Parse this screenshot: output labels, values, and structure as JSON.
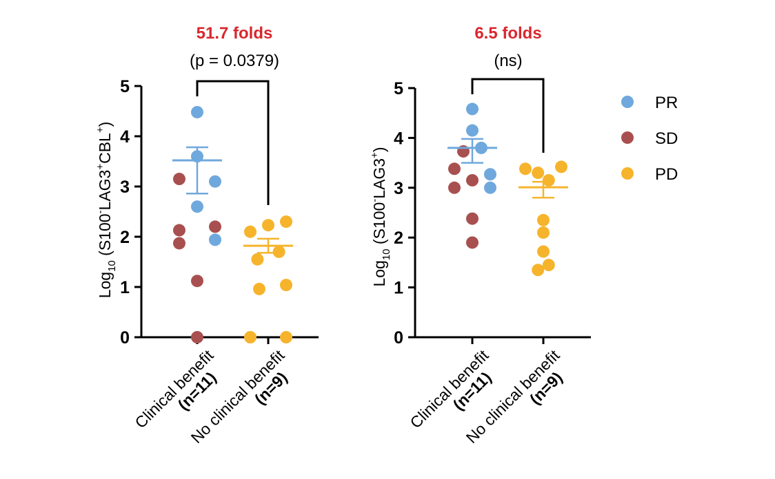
{
  "colors": {
    "PR": "#6fa8dc",
    "SD": "#a8504f",
    "PD": "#f6b42c",
    "fold": "#d9272e"
  },
  "legend": [
    {
      "key": "PR",
      "label": "PR"
    },
    {
      "key": "SD",
      "label": "SD"
    },
    {
      "key": "PD",
      "label": "PD"
    }
  ],
  "chart_data": [
    {
      "type": "scatter",
      "ylabel": {
        "base": "Log",
        "sub": "10",
        "pre": " (S100",
        "sup1": "-",
        "mid": "LAG3",
        "sup2": "+",
        "mid2": "CBL",
        "sup3": "+",
        "post": ")"
      },
      "ylim": [
        0,
        5
      ],
      "yticks": [
        "0",
        "1",
        "2",
        "3",
        "4",
        "5"
      ],
      "categories": [
        {
          "line1": "Clinical benefit",
          "line2": "(n=11)"
        },
        {
          "line1": "No clinical benefit",
          "line2": "(n=9)"
        }
      ],
      "fold": "51.7 folds",
      "pvalue": "(p = 0.0379)",
      "points": [
        {
          "group": 0,
          "type": "PR",
          "y": 4.48,
          "dx": 0
        },
        {
          "group": 0,
          "type": "PR",
          "y": 3.6,
          "dx": 0
        },
        {
          "group": 0,
          "type": "PR",
          "y": 3.1,
          "dx": 1
        },
        {
          "group": 0,
          "type": "PR",
          "y": 2.6,
          "dx": 0
        },
        {
          "group": 0,
          "type": "PR",
          "y": 1.94,
          "dx": 1
        },
        {
          "group": 0,
          "type": "SD",
          "y": 3.15,
          "dx": -1
        },
        {
          "group": 0,
          "type": "SD",
          "y": 2.13,
          "dx": -1
        },
        {
          "group": 0,
          "type": "SD",
          "y": 2.2,
          "dx": 1
        },
        {
          "group": 0,
          "type": "SD",
          "y": 1.87,
          "dx": -1
        },
        {
          "group": 0,
          "type": "SD",
          "y": 1.12,
          "dx": 0
        },
        {
          "group": 0,
          "type": "SD",
          "y": 0.0,
          "dx": 0
        },
        {
          "group": 1,
          "type": "PD",
          "y": 2.3,
          "dx": 1
        },
        {
          "group": 1,
          "type": "PD",
          "y": 2.23,
          "dx": 0
        },
        {
          "group": 1,
          "type": "PD",
          "y": 2.1,
          "dx": -1
        },
        {
          "group": 1,
          "type": "PD",
          "y": 1.7,
          "dx": 0.6
        },
        {
          "group": 1,
          "type": "PD",
          "y": 1.55,
          "dx": -0.6
        },
        {
          "group": 1,
          "type": "PD",
          "y": 1.04,
          "dx": 1
        },
        {
          "group": 1,
          "type": "PD",
          "y": 0.96,
          "dx": -0.5
        },
        {
          "group": 1,
          "type": "PD",
          "y": 0.0,
          "dx": -1
        },
        {
          "group": 1,
          "type": "PD",
          "y": 0.0,
          "dx": 1
        }
      ],
      "summary": [
        {
          "type": "PR",
          "mean": 3.52,
          "low": 2.86,
          "high": 3.78
        },
        {
          "type": "PD",
          "mean": 1.82,
          "low": 1.68,
          "high": 1.96
        }
      ]
    },
    {
      "type": "scatter",
      "ylabel": {
        "base": "Log",
        "sub": "10",
        "pre": " (S100",
        "sup1": "-",
        "mid": "LAG3",
        "sup2": "+",
        "mid2": "",
        "sup3": "",
        "post": ")"
      },
      "ylim": [
        0,
        5
      ],
      "yticks": [
        "0",
        "1",
        "2",
        "3",
        "4",
        "5"
      ],
      "categories": [
        {
          "line1": "Clinical benefit",
          "line2": "(n=11)"
        },
        {
          "line1": "No clinical benefit",
          "line2": "(n=9)"
        }
      ],
      "fold": "6.5 folds",
      "pvalue": "(ns)",
      "points": [
        {
          "group": 0,
          "type": "PR",
          "y": 4.58,
          "dx": 0
        },
        {
          "group": 0,
          "type": "PR",
          "y": 4.15,
          "dx": 0
        },
        {
          "group": 0,
          "type": "PR",
          "y": 3.8,
          "dx": 0.5
        },
        {
          "group": 0,
          "type": "PR",
          "y": 3.27,
          "dx": 1
        },
        {
          "group": 0,
          "type": "PR",
          "y": 3.0,
          "dx": 1
        },
        {
          "group": 0,
          "type": "SD",
          "y": 3.73,
          "dx": -0.5
        },
        {
          "group": 0,
          "type": "SD",
          "y": 3.38,
          "dx": -1
        },
        {
          "group": 0,
          "type": "SD",
          "y": 3.15,
          "dx": 0
        },
        {
          "group": 0,
          "type": "SD",
          "y": 3.0,
          "dx": -1
        },
        {
          "group": 0,
          "type": "SD",
          "y": 2.38,
          "dx": 0
        },
        {
          "group": 0,
          "type": "SD",
          "y": 1.9,
          "dx": 0
        },
        {
          "group": 1,
          "type": "PD",
          "y": 3.42,
          "dx": 1
        },
        {
          "group": 1,
          "type": "PD",
          "y": 3.38,
          "dx": -1
        },
        {
          "group": 1,
          "type": "PD",
          "y": 3.3,
          "dx": -0.3
        },
        {
          "group": 1,
          "type": "PD",
          "y": 3.15,
          "dx": 0.3
        },
        {
          "group": 1,
          "type": "PD",
          "y": 2.35,
          "dx": 0
        },
        {
          "group": 1,
          "type": "PD",
          "y": 2.1,
          "dx": 0
        },
        {
          "group": 1,
          "type": "PD",
          "y": 1.72,
          "dx": 0
        },
        {
          "group": 1,
          "type": "PD",
          "y": 1.45,
          "dx": 0.3
        },
        {
          "group": 1,
          "type": "PD",
          "y": 1.35,
          "dx": -0.3
        }
      ],
      "summary": [
        {
          "type": "PR",
          "mean": 3.8,
          "low": 3.5,
          "high": 3.98
        },
        {
          "type": "PD",
          "mean": 3.01,
          "low": 2.8,
          "high": 3.12
        }
      ]
    }
  ]
}
